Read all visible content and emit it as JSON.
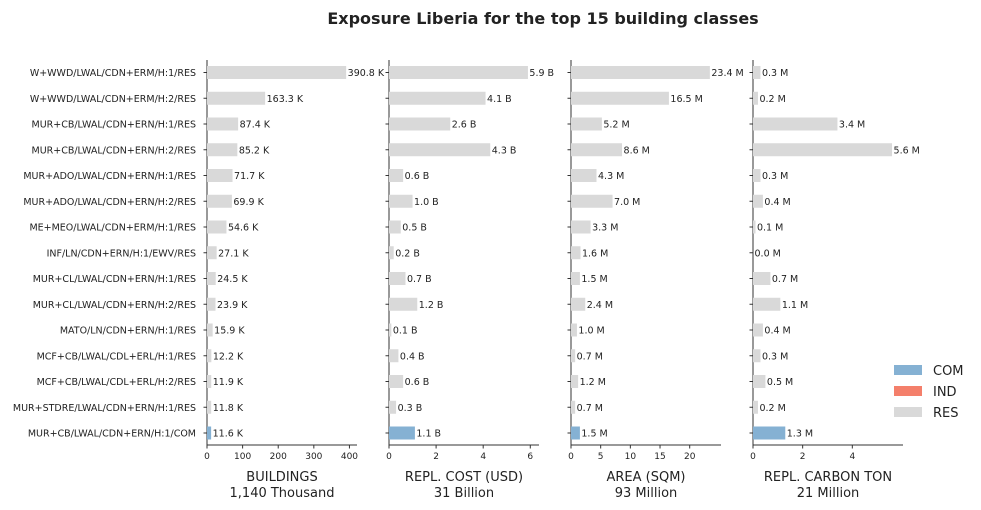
{
  "chart_data": {
    "type": "bar",
    "orientation": "horizontal",
    "title": "Exposure Liberia for the top 15 building classes",
    "categories": [
      "W+WWD/LWAL/CDN+ERM/H:1/RES",
      "W+WWD/LWAL/CDN+ERM/H:2/RES",
      "MUR+CB/LWAL/CDN+ERN/H:1/RES",
      "MUR+CB/LWAL/CDN+ERN/H:2/RES",
      "MUR+ADO/LWAL/CDN+ERN/H:1/RES",
      "MUR+ADO/LWAL/CDN+ERN/H:2/RES",
      "ME+MEO/LWAL/CDN+ERM/H:1/RES",
      "INF/LN/CDN+ERN/H:1/EWV/RES",
      "MUR+CL/LWAL/CDN+ERN/H:1/RES",
      "MUR+CL/LWAL/CDN+ERN/H:2/RES",
      "MATO/LN/CDN+ERN/H:1/RES",
      "MCF+CB/LWAL/CDL+ERL/H:1/RES",
      "MCF+CB/LWAL/CDL+ERL/H:2/RES",
      "MUR+STDRE/LWAL/CDN+ERN/H:1/RES",
      "MUR+CB/LWAL/CDN+ERN/H:1/COM"
    ],
    "occupancy": [
      "RES",
      "RES",
      "RES",
      "RES",
      "RES",
      "RES",
      "RES",
      "RES",
      "RES",
      "RES",
      "RES",
      "RES",
      "RES",
      "RES",
      "COM"
    ],
    "colors": {
      "COM": "#85b1d3",
      "IND": "#f47f6b",
      "RES": "#d9d9d9"
    },
    "legend": {
      "position": "right",
      "entries": [
        "COM",
        "IND",
        "RES"
      ]
    },
    "panels": [
      {
        "xlabel": "BUILDINGS",
        "subtitle": "1,140 Thousand",
        "xlim": [
          0,
          410
        ],
        "ticks": [
          0,
          100,
          200,
          300,
          400
        ],
        "tick_labels": [
          "0",
          "100",
          "200",
          "300",
          "400"
        ],
        "values": [
          390.8,
          163.3,
          87.4,
          85.2,
          71.7,
          69.9,
          54.6,
          27.1,
          24.5,
          23.9,
          15.9,
          12.2,
          11.9,
          11.8,
          11.6
        ],
        "labels": [
          "390.8 K",
          "163.3 K",
          "87.4 K",
          "85.2 K",
          "71.7 K",
          "69.9 K",
          "54.6 K",
          "27.1 K",
          "24.5 K",
          "23.9 K",
          "15.9 K",
          "12.2 K",
          "11.9 K",
          "11.8 K",
          "11.6 K"
        ]
      },
      {
        "xlabel": "REPL. COST (USD)",
        "subtitle": "31 Billion",
        "xlim": [
          0,
          6.2
        ],
        "ticks": [
          0,
          2,
          4,
          6
        ],
        "tick_labels": [
          "0",
          "2",
          "4",
          "6"
        ],
        "values": [
          5.9,
          4.1,
          2.6,
          4.3,
          0.6,
          1.0,
          0.5,
          0.2,
          0.7,
          1.2,
          0.1,
          0.4,
          0.6,
          0.3,
          1.1
        ],
        "labels": [
          "5.9 B",
          "4.1 B",
          "2.6 B",
          "4.3 B",
          "0.6 B",
          "1.0 B",
          "0.5 B",
          "0.2 B",
          "0.7 B",
          "1.2 B",
          "0.1 B",
          "0.4 B",
          "0.6 B",
          "0.3 B",
          "1.1 B"
        ]
      },
      {
        "xlabel": "AREA (SQM)",
        "subtitle": "93 Million",
        "xlim": [
          0,
          24.6
        ],
        "ticks": [
          0,
          5,
          10,
          15,
          20
        ],
        "tick_labels": [
          "0",
          "5",
          "10",
          "15",
          "20"
        ],
        "values": [
          23.4,
          16.5,
          5.2,
          8.6,
          4.3,
          7.0,
          3.3,
          1.6,
          1.5,
          2.4,
          1.0,
          0.7,
          1.2,
          0.7,
          1.5
        ],
        "labels": [
          "23.4 M",
          "16.5 M",
          "5.2 M",
          "8.6 M",
          "4.3 M",
          "7.0 M",
          "3.3 M",
          "1.6 M",
          "1.5 M",
          "2.4 M",
          "1.0 M",
          "0.7 M",
          "1.2 M",
          "0.7 M",
          "1.5 M"
        ]
      },
      {
        "xlabel": "REPL. CARBON TON",
        "subtitle": "21 Million",
        "xlim": [
          0,
          5.88
        ],
        "ticks": [
          0,
          2,
          4
        ],
        "tick_labels": [
          "0",
          "2",
          "4"
        ],
        "values": [
          0.3,
          0.2,
          3.4,
          5.6,
          0.3,
          0.4,
          0.1,
          0.0,
          0.7,
          1.1,
          0.4,
          0.3,
          0.5,
          0.2,
          1.3
        ],
        "labels": [
          "0.3 M",
          "0.2 M",
          "3.4 M",
          "5.6 M",
          "0.3 M",
          "0.4 M",
          "0.1 M",
          "0.0 M",
          "0.7 M",
          "1.1 M",
          "0.4 M",
          "0.3 M",
          "0.5 M",
          "0.2 M",
          "1.3 M"
        ]
      }
    ]
  }
}
